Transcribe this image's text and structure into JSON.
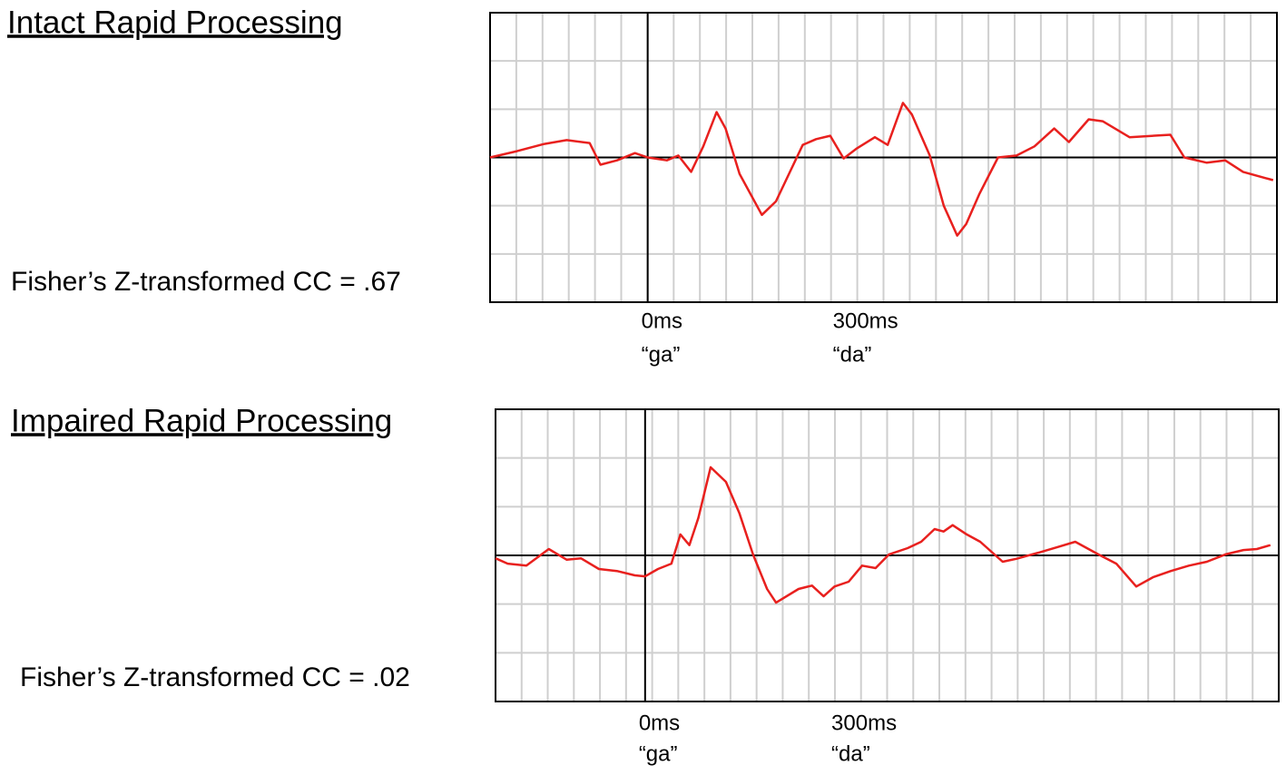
{
  "chart_data": [
    {
      "type": "line",
      "title": "Intact Rapid Processing",
      "annotation": "Fisher’s Z-transformed CC = .67",
      "xlim": [
        -247,
        986
      ],
      "ylim": [
        -3,
        3
      ],
      "xticks": [
        {
          "value": 0,
          "label": "0ms"
        },
        {
          "value": 300,
          "label": "300ms"
        }
      ],
      "xtick_sublabels": [
        "“ga”",
        "“da”"
      ],
      "grid": true,
      "grid_rows": 6,
      "grid_cols": 30,
      "series": [
        {
          "color": "#e8201e",
          "x": [
            -247,
            -205,
            -162,
            -127,
            -91,
            -74,
            -48,
            -20,
            0,
            30,
            48,
            68,
            87,
            108,
            122,
            144,
            179,
            201,
            243,
            264,
            286,
            307,
            328,
            356,
            376,
            400,
            414,
            442,
            464,
            485,
            499,
            520,
            549,
            578,
            606,
            637,
            660,
            691,
            713,
            755,
            819,
            841,
            876,
            905,
            933,
            969,
            980
          ],
          "values": [
            0,
            0.13,
            0.28,
            0.36,
            0.3,
            -0.15,
            -0.06,
            0.09,
            0,
            -0.06,
            0.04,
            -0.3,
            0.23,
            0.94,
            0.6,
            -0.34,
            -1.19,
            -0.91,
            0.26,
            0.38,
            0.45,
            -0.02,
            0.19,
            0.42,
            0.26,
            1.13,
            0.89,
            0.04,
            -1,
            -1.62,
            -1.38,
            -0.75,
            0,
            0.04,
            0.23,
            0.6,
            0.32,
            0.79,
            0.75,
            0.42,
            0.47,
            0,
            -0.11,
            -0.06,
            -0.3,
            -0.43,
            -0.47
          ]
        }
      ]
    },
    {
      "type": "line",
      "title": "Impaired Rapid Processing",
      "annotation": "Fisher’s Z-transformed CC = .02",
      "xlim": [
        -233,
        987
      ],
      "ylim": [
        -3,
        3
      ],
      "xticks": [
        {
          "value": 0,
          "label": "0ms"
        },
        {
          "value": 300,
          "label": "300ms"
        }
      ],
      "xtick_sublabels": [
        "“ga”",
        "“da”"
      ],
      "grid": true,
      "grid_rows": 6,
      "grid_cols": 30,
      "series": [
        {
          "color": "#e8201e",
          "x": [
            -233,
            -214,
            -185,
            -150,
            -122,
            -100,
            -72,
            -44,
            -16,
            0,
            20,
            41,
            55,
            69,
            83,
            102,
            126,
            147,
            168,
            190,
            204,
            239,
            260,
            278,
            295,
            317,
            338,
            359,
            380,
            409,
            430,
            451,
            465,
            479,
            501,
            522,
            557,
            578,
            614,
            642,
            670,
            706,
            734,
            765,
            791,
            819,
            847,
            875,
            904,
            932,
            953,
            974
          ],
          "values": [
            -0.06,
            -0.17,
            -0.21,
            0.13,
            -0.09,
            -0.06,
            -0.28,
            -0.32,
            -0.41,
            -0.43,
            -0.28,
            -0.17,
            0.43,
            0.21,
            0.77,
            1.81,
            1.51,
            0.86,
            0.02,
            -0.69,
            -0.97,
            -0.69,
            -0.62,
            -0.84,
            -0.64,
            -0.54,
            -0.21,
            -0.26,
            0.02,
            0.15,
            0.28,
            0.54,
            0.49,
            0.62,
            0.43,
            0.28,
            -0.13,
            -0.07,
            0.06,
            0.17,
            0.28,
            0.02,
            -0.17,
            -0.64,
            -0.45,
            -0.32,
            -0.21,
            -0.13,
            0.02,
            0.11,
            0.13,
            0.21
          ]
        }
      ]
    }
  ]
}
